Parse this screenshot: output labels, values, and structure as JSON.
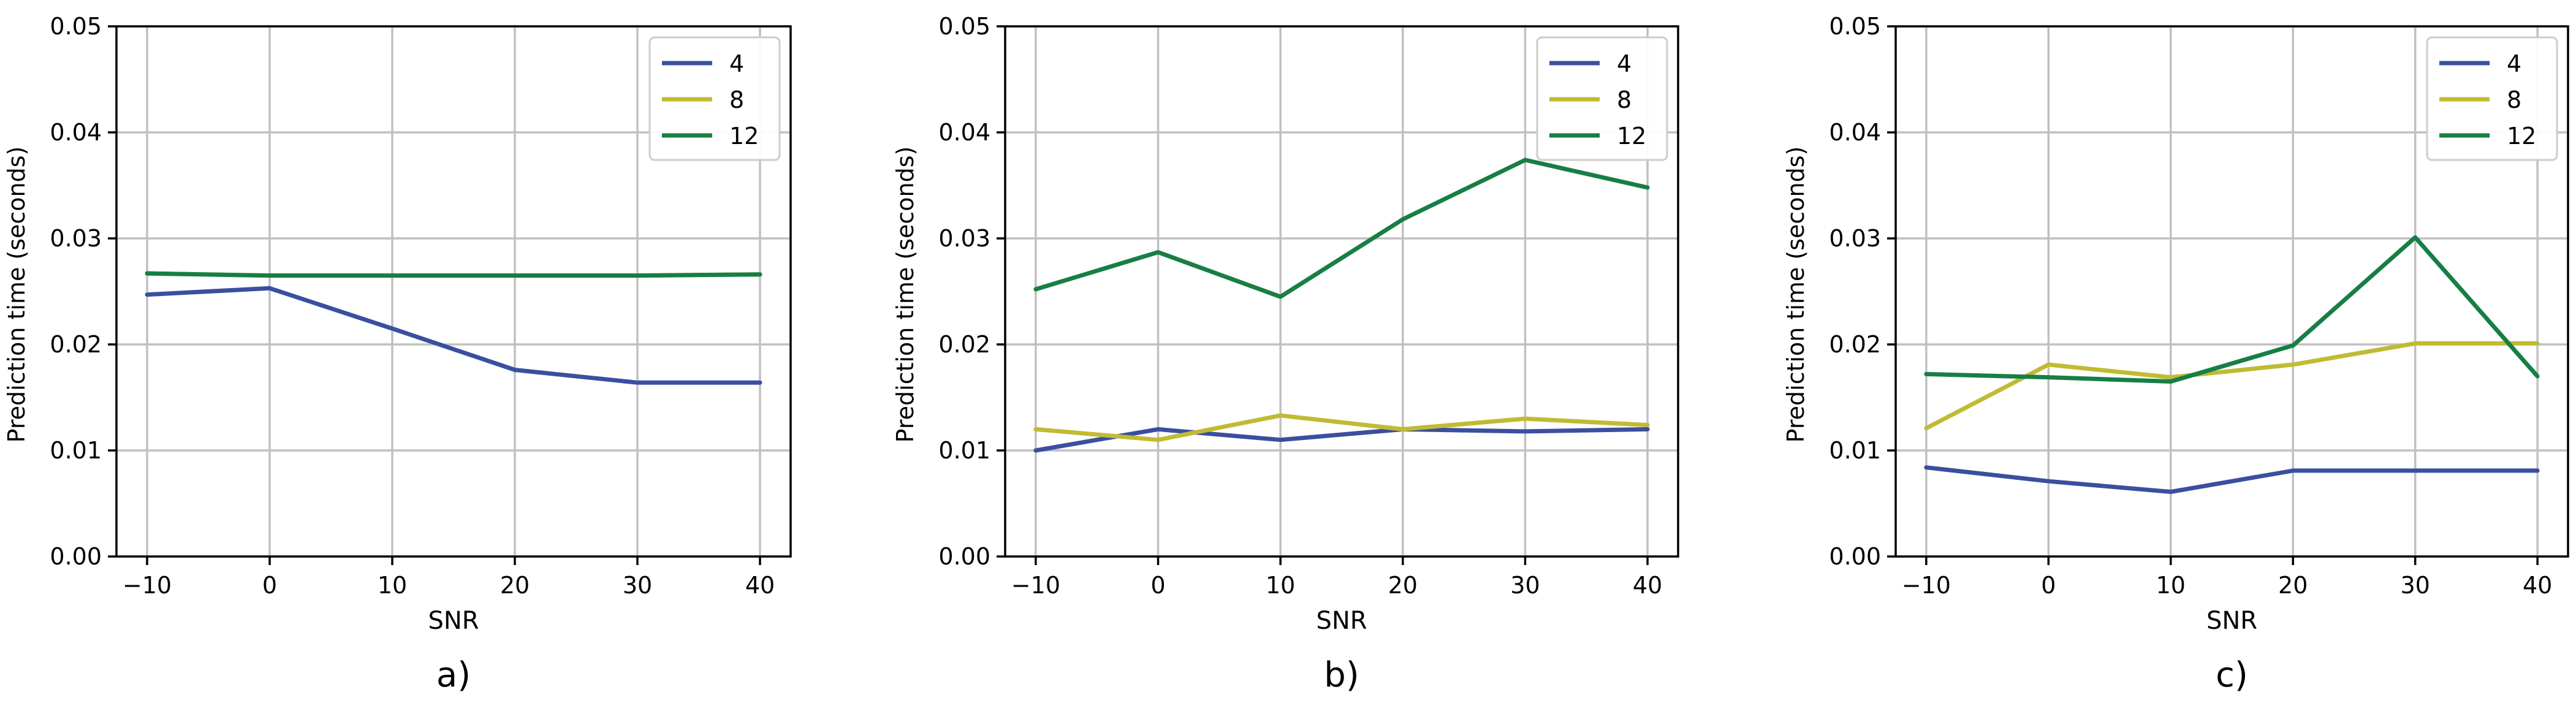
{
  "chart_data": [
    {
      "type": "line",
      "panel_label": "a)",
      "xlabel": "SNR",
      "ylabel": "Prediction time (seconds)",
      "x": [
        -10,
        0,
        10,
        20,
        30,
        40
      ],
      "xticks": [
        "−10",
        "0",
        "10",
        "20",
        "30",
        "40"
      ],
      "yticks": [
        "0.00",
        "0.01",
        "0.02",
        "0.03",
        "0.04",
        "0.05"
      ],
      "xlim": [
        -12.5,
        42.5
      ],
      "ylim": [
        0,
        0.05
      ],
      "grid": true,
      "legend_position": "top-right",
      "series": [
        {
          "name": "4",
          "color": "#3a4fa0",
          "values": [
            0.0247,
            0.0253,
            0.0215,
            0.0176,
            0.0164,
            0.0164
          ]
        },
        {
          "name": "8",
          "color": "#c1bb33",
          "values": [
            0.0267,
            0.0265,
            0.0265,
            0.0265,
            0.0265,
            0.0266
          ]
        },
        {
          "name": "12",
          "color": "#177e45",
          "values": [
            0.0267,
            0.0265,
            0.0265,
            0.0265,
            0.0265,
            0.0266
          ]
        }
      ]
    },
    {
      "type": "line",
      "panel_label": "b)",
      "xlabel": "SNR",
      "ylabel": "Prediction time (seconds)",
      "x": [
        -10,
        0,
        10,
        20,
        30,
        40
      ],
      "xticks": [
        "−10",
        "0",
        "10",
        "20",
        "30",
        "40"
      ],
      "yticks": [
        "0.00",
        "0.01",
        "0.02",
        "0.03",
        "0.04",
        "0.05"
      ],
      "xlim": [
        -12.5,
        42.5
      ],
      "ylim": [
        0,
        0.05
      ],
      "grid": true,
      "legend_position": "top-right",
      "series": [
        {
          "name": "4",
          "color": "#3a4fa0",
          "values": [
            0.01,
            0.012,
            0.011,
            0.012,
            0.0118,
            0.012
          ]
        },
        {
          "name": "8",
          "color": "#c1bb33",
          "values": [
            0.012,
            0.011,
            0.0133,
            0.012,
            0.013,
            0.0124
          ]
        },
        {
          "name": "12",
          "color": "#177e45",
          "values": [
            0.0252,
            0.0287,
            0.0245,
            0.0318,
            0.0374,
            0.0348
          ]
        }
      ]
    },
    {
      "type": "line",
      "panel_label": "c)",
      "xlabel": "SNR",
      "ylabel": "Prediction time (seconds)",
      "x": [
        -10,
        0,
        10,
        20,
        30,
        40
      ],
      "xticks": [
        "−10",
        "0",
        "10",
        "20",
        "30",
        "40"
      ],
      "yticks": [
        "0.00",
        "0.01",
        "0.02",
        "0.03",
        "0.04",
        "0.05"
      ],
      "xlim": [
        -12.5,
        42.5
      ],
      "ylim": [
        0,
        0.05
      ],
      "grid": true,
      "legend_position": "top-right",
      "series": [
        {
          "name": "4",
          "color": "#3a4fa0",
          "values": [
            0.0084,
            0.0071,
            0.0061,
            0.0081,
            0.0081,
            0.0081
          ]
        },
        {
          "name": "8",
          "color": "#c1bb33",
          "values": [
            0.0121,
            0.0181,
            0.0169,
            0.0181,
            0.0201,
            0.0201
          ]
        },
        {
          "name": "12",
          "color": "#177e45",
          "values": [
            0.0172,
            0.0169,
            0.0165,
            0.0199,
            0.0301,
            0.017
          ]
        }
      ]
    }
  ]
}
